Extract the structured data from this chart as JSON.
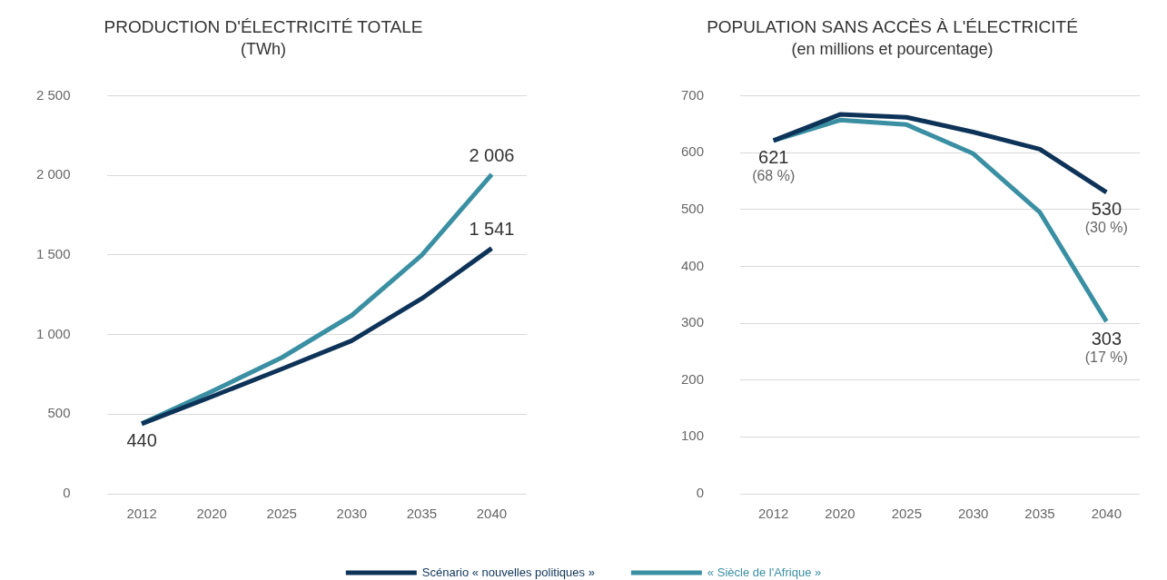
{
  "chart_data": [
    {
      "type": "line",
      "title": "PRODUCTION D'ÉLECTRICITÉ TOTALE",
      "subtitle": "(TWh)",
      "categories": [
        "2012",
        "2020",
        "2025",
        "2030",
        "2035",
        "2040"
      ],
      "series": [
        {
          "name": "Scénario « nouvelles politiques »",
          "color": "#0d3358",
          "values": [
            440,
            610,
            784,
            961,
            1226,
            1541
          ]
        },
        {
          "name": "« Siècle de l'Afrique »",
          "color": "#3a8fa3",
          "values": [
            440,
            643,
            855,
            1120,
            1498,
            2006
          ]
        }
      ],
      "ylim": [
        0,
        2500
      ],
      "yticks": [
        0,
        500,
        {
          "value": 1000,
          "label": "1 000"
        },
        {
          "value": 1500,
          "label": "1 500"
        },
        {
          "value": 2000,
          "label": "2 000"
        },
        {
          "value": 2500,
          "label": "2 500"
        }
      ],
      "grid": "y",
      "legend": "bottom",
      "marker": "none",
      "line_style": "solid",
      "annotations": [
        {
          "text": "440",
          "x": "2012",
          "y": 440
        },
        {
          "text": "2 006",
          "x": "2040",
          "y": 2006
        },
        {
          "text": "1 541",
          "x": "2040",
          "y": 1541
        }
      ]
    },
    {
      "type": "line",
      "title": "POPULATION SANS ACCÈS À L'ÉLECTRICITÉ",
      "subtitle": "(en millions et pourcentage)",
      "categories": [
        "2012",
        "2020",
        "2025",
        "2030",
        "2035",
        "2040"
      ],
      "series": [
        {
          "color": "#0d3358",
          "values": [
            621,
            667,
            662,
            636,
            606,
            530
          ]
        },
        {
          "color": "#3a8fa3",
          "values": [
            621,
            657,
            649,
            598,
            495,
            303
          ]
        }
      ],
      "ylim": [
        0,
        700
      ],
      "yticks": [
        0,
        100,
        200,
        300,
        400,
        500,
        600,
        700
      ],
      "grid": "y",
      "marker": "none",
      "line_style": "solid",
      "annotations": [
        {
          "text": "621",
          "x": "2012",
          "y": 621
        },
        {
          "text": "(68 %)",
          "x": "2012",
          "y": 621
        },
        {
          "text": "530",
          "x": "2040",
          "y": 530
        },
        {
          "text": "(30 %)",
          "x": "2040",
          "y": 530
        },
        {
          "text": "303",
          "x": "2040",
          "y": 303
        },
        {
          "text": "(17 %)",
          "x": "2040",
          "y": 303
        }
      ]
    }
  ]
}
